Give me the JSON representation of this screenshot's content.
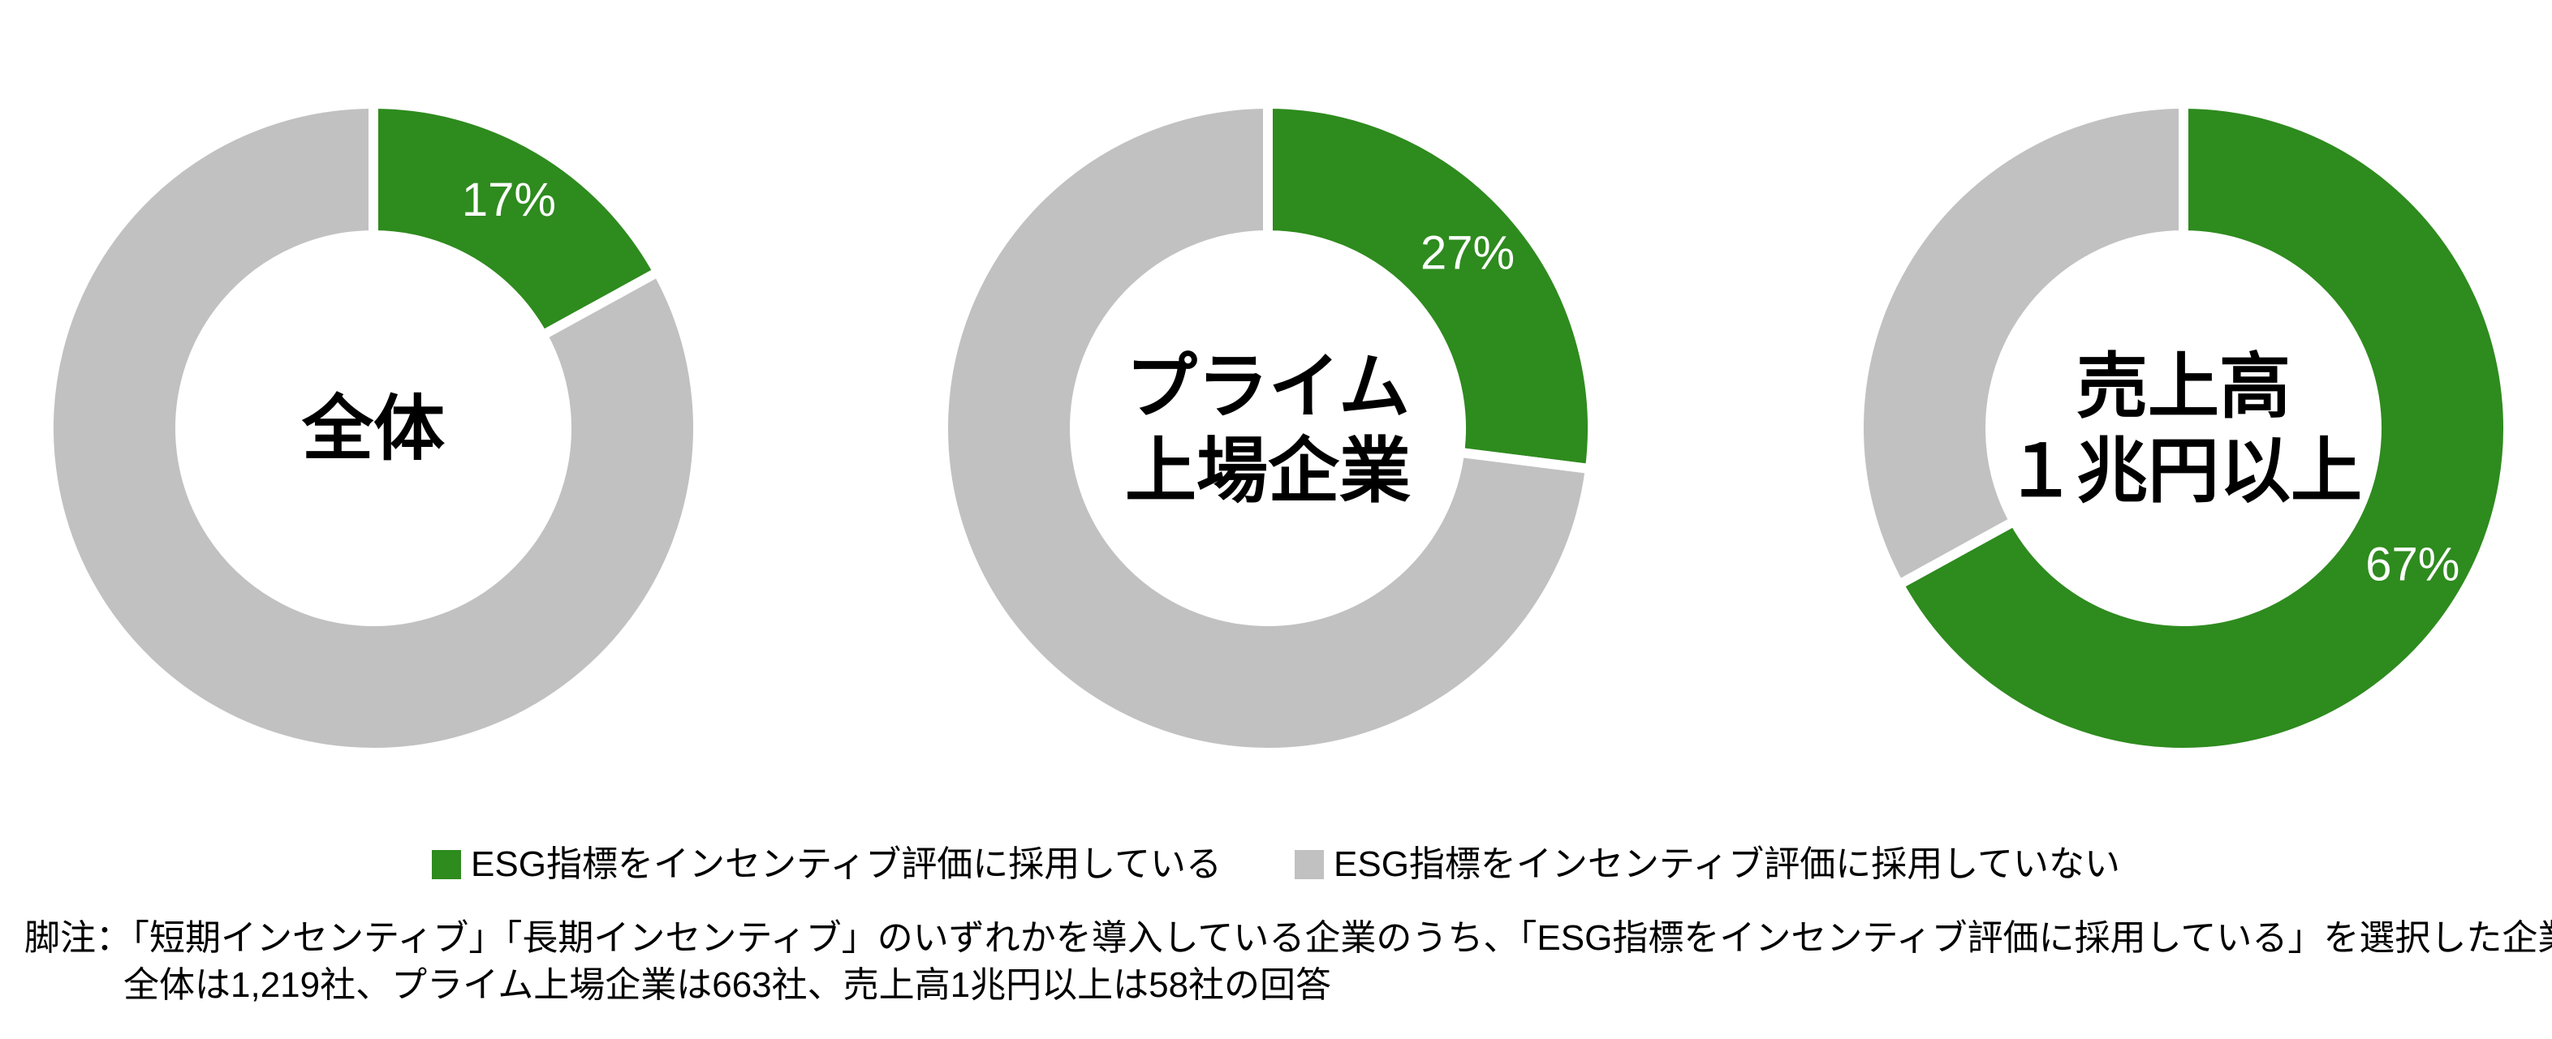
{
  "chart_data": {
    "type": "pie",
    "variant": "donut",
    "unit": "%",
    "start_angle_deg": 0,
    "direction": "clockwise",
    "legend_position": "bottom-center",
    "colors": {
      "adopted": "#2e8b1e",
      "not_adopted": "#c1c1c1",
      "percent_label": "#ffffff",
      "center_label": "#000000"
    },
    "legend": [
      {
        "key": "adopted",
        "label": "ESG指標をインセンティブ評価に採用している",
        "color": "#2e8b1e"
      },
      {
        "key": "not_adopted",
        "label": "ESG指標をインセンティブ評価に採用していない",
        "color": "#c1c1c1"
      }
    ],
    "charts": [
      {
        "label": "全体",
        "label_lines": [
          "全体"
        ],
        "value": 17,
        "value_label": "17%",
        "values": {
          "adopted": 17,
          "not_adopted": 83
        },
        "n": 1219
      },
      {
        "label": "プライム上場企業",
        "label_lines": [
          "プライム",
          "上場企業"
        ],
        "value": 27,
        "value_label": "27%",
        "values": {
          "adopted": 27,
          "not_adopted": 73
        },
        "n": 663
      },
      {
        "label": "売上高１兆円以上",
        "label_lines": [
          "売上高",
          "１兆円以上"
        ],
        "value": 67,
        "value_label": "67%",
        "values": {
          "adopted": 67,
          "not_adopted": 33
        },
        "n": 58
      }
    ]
  },
  "footnote": {
    "line1": "脚注：「短期インセンティブ」「長期インセンティブ」のいずれかを導入している企業のうち、「ESG指標をインセンティブ評価に採用している」を選択した企業の回答。",
    "line2": "全体は1,219社、プライム上場企業は663社、売上高1兆円以上は58社の回答"
  }
}
